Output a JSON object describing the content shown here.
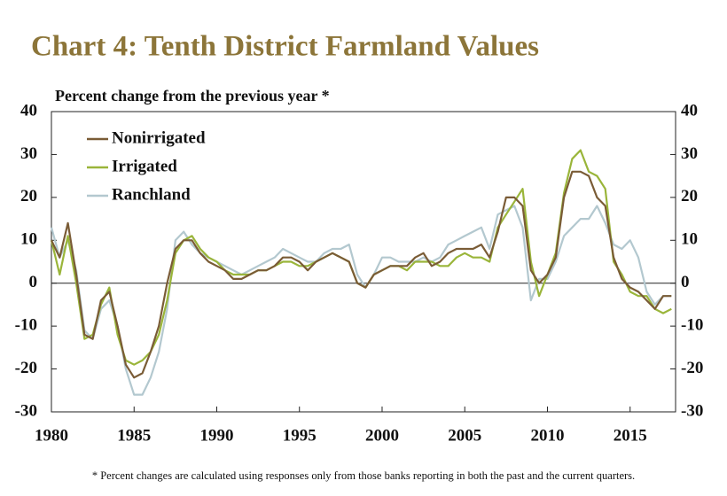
{
  "chart_data": {
    "type": "line",
    "title": "Chart 4: Tenth District Farmland Values",
    "y_label": "Percent change from the previous year *",
    "footnote": "* Percent changes are calculated using responses only from those banks reporting in both the past and the current quarters.",
    "x": [
      1980,
      1980.5,
      1981,
      1981.5,
      1982,
      1982.5,
      1983,
      1983.5,
      1984,
      1984.5,
      1985,
      1985.5,
      1986,
      1986.5,
      1987,
      1987.5,
      1988,
      1988.5,
      1989,
      1989.5,
      1990,
      1990.5,
      1991,
      1991.5,
      1992,
      1992.5,
      1993,
      1993.5,
      1994,
      1994.5,
      1995,
      1995.5,
      1996,
      1996.5,
      1997,
      1997.5,
      1998,
      1998.5,
      1999,
      1999.5,
      2000,
      2000.5,
      2001,
      2001.5,
      2002,
      2002.5,
      2003,
      2003.5,
      2004,
      2004.5,
      2005,
      2005.5,
      2006,
      2006.5,
      2007,
      2007.5,
      2008,
      2008.5,
      2009,
      2009.5,
      2010,
      2010.5,
      2011,
      2011.5,
      2012,
      2012.5,
      2013,
      2013.5,
      2014,
      2014.5,
      2015,
      2015.5,
      2016,
      2016.5,
      2017,
      2017.5
    ],
    "series": [
      {
        "name": "Nonirrigated",
        "color": "#7a5c36",
        "values": [
          10,
          6,
          14,
          2,
          -12,
          -13,
          -4,
          -2,
          -10,
          -19,
          -22,
          -21,
          -16,
          -10,
          0,
          8,
          10,
          10,
          7,
          5,
          4,
          3,
          1,
          1,
          2,
          3,
          3,
          4,
          6,
          6,
          5,
          3,
          5,
          6,
          7,
          6,
          5,
          0,
          -1,
          2,
          3,
          4,
          4,
          4,
          6,
          7,
          4,
          5,
          7,
          8,
          8,
          8,
          9,
          6,
          12,
          20,
          20,
          18,
          3,
          0,
          2,
          6,
          20,
          26,
          26,
          25,
          20,
          18,
          6,
          1,
          -1,
          -2,
          -4,
          -6,
          -3,
          -3
        ]
      },
      {
        "name": "Irrigated",
        "color": "#9ab53a",
        "values": [
          10,
          2,
          11,
          0,
          -13,
          -12,
          -5,
          -1,
          -12,
          -18,
          -19,
          -18,
          -16,
          -12,
          -4,
          7,
          10,
          11,
          8,
          6,
          5,
          3,
          2,
          2,
          2,
          3,
          3,
          4,
          5,
          5,
          4,
          4,
          5,
          6,
          7,
          6,
          5,
          0,
          -1,
          2,
          3,
          4,
          4,
          3,
          5,
          5,
          5,
          4,
          4,
          6,
          7,
          6,
          6,
          5,
          13,
          16,
          19,
          22,
          5,
          -3,
          2,
          7,
          21,
          29,
          31,
          26,
          25,
          22,
          5,
          2,
          -2,
          -3,
          -3,
          -6,
          -7,
          -6
        ]
      },
      {
        "name": "Ranchland",
        "color": "#b3c8cf",
        "values": [
          13,
          6,
          10,
          3,
          -11,
          -13,
          -6,
          -4,
          -10,
          -20,
          -26,
          -26,
          -22,
          -16,
          -6,
          10,
          12,
          9,
          7,
          6,
          5,
          4,
          3,
          2,
          3,
          4,
          5,
          6,
          8,
          7,
          6,
          5,
          5,
          7,
          8,
          8,
          9,
          2,
          -1,
          2,
          6,
          6,
          5,
          5,
          5,
          6,
          5,
          6,
          9,
          10,
          11,
          12,
          13,
          8,
          16,
          17,
          18,
          13,
          -4,
          1,
          1,
          5,
          11,
          13,
          15,
          15,
          18,
          14,
          9,
          8,
          10,
          6,
          -2,
          -5,
          -3,
          -3
        ]
      }
    ],
    "xlim": [
      1980,
      2017.75
    ],
    "xticks": [
      1980,
      1985,
      1990,
      1995,
      2000,
      2005,
      2010,
      2015
    ],
    "ylim": [
      -30,
      40
    ],
    "yticks": [
      -30,
      -20,
      -10,
      0,
      10,
      20,
      30,
      40
    ],
    "title_color": "#8c7539"
  }
}
